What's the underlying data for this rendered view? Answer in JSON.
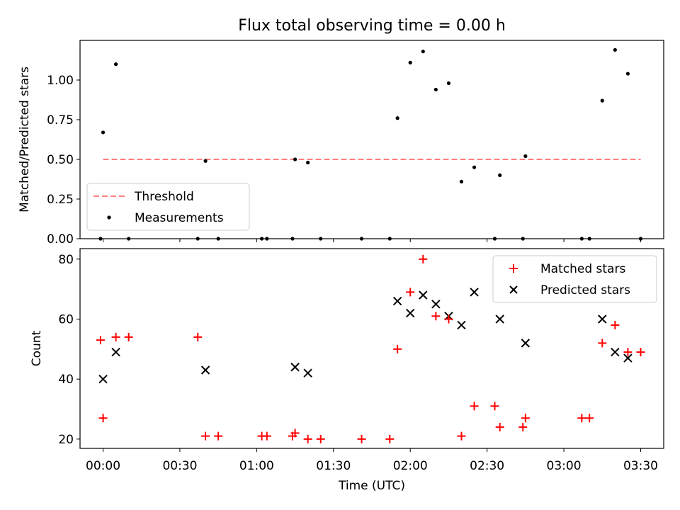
{
  "chart_data": [
    {
      "type": "scatter",
      "title": "Flux total observing time = 0.00 h",
      "xlabel": "",
      "ylabel": "Matched/Predicted stars",
      "xlim": [
        "23:51",
        "03:39"
      ],
      "ylim": [
        0,
        1.25
      ],
      "yticks": [
        "0.00",
        "0.25",
        "0.50",
        "0.75",
        "1.00"
      ],
      "yticks_values": [
        0,
        0.25,
        0.5,
        0.75,
        1.0
      ],
      "grid": false,
      "legend_position": "lower-left",
      "threshold": {
        "name": "Threshold",
        "value": 0.5,
        "color": "#ff7f7f",
        "style": "dashed",
        "x_range": [
          "00:00",
          "03:30"
        ]
      },
      "series": [
        {
          "name": "Measurements",
          "color": "#000000",
          "marker": "dot",
          "x": [
            "23:59",
            "00:00",
            "00:05",
            "00:10",
            "00:37",
            "00:40",
            "00:45",
            "01:02",
            "01:04",
            "01:14",
            "01:15",
            "01:20",
            "01:25",
            "01:41",
            "01:52",
            "01:55",
            "02:00",
            "02:05",
            "02:10",
            "02:15",
            "02:20",
            "02:25",
            "02:33",
            "02:35",
            "02:44",
            "02:45",
            "03:07",
            "03:10",
            "03:15",
            "03:20",
            "03:25",
            "03:30"
          ],
          "y": [
            0,
            0.67,
            1.1,
            0,
            0,
            0.49,
            0,
            0,
            0,
            0,
            0.5,
            0.48,
            0,
            0,
            0,
            0.76,
            1.11,
            1.18,
            0.94,
            0.98,
            0.36,
            0.45,
            0,
            0.4,
            0,
            0.52,
            0,
            0,
            0.87,
            1.19,
            1.04,
            0
          ]
        }
      ]
    },
    {
      "type": "scatter",
      "title": "",
      "xlabel": "Time (UTC)",
      "ylabel": "Count",
      "xlim": [
        "23:51",
        "03:39"
      ],
      "ylim": [
        16.9,
        83.5
      ],
      "xticks": [
        "00:00",
        "00:30",
        "01:00",
        "01:30",
        "02:00",
        "02:30",
        "03:00",
        "03:30"
      ],
      "yticks": [
        "20",
        "40",
        "60",
        "80"
      ],
      "yticks_values": [
        20,
        40,
        60,
        80
      ],
      "grid": false,
      "legend_position": "top-right",
      "series": [
        {
          "name": "Matched stars",
          "color": "#ff0000",
          "marker": "plus",
          "x": [
            "23:59",
            "00:00",
            "00:05",
            "00:10",
            "00:37",
            "00:40",
            "00:45",
            "01:02",
            "01:04",
            "01:14",
            "01:15",
            "01:20",
            "01:25",
            "01:41",
            "01:52",
            "01:55",
            "02:00",
            "02:05",
            "02:10",
            "02:15",
            "02:20",
            "02:25",
            "02:33",
            "02:35",
            "02:44",
            "02:45",
            "03:07",
            "03:10",
            "03:15",
            "03:20",
            "03:25",
            "03:30"
          ],
          "y": [
            53,
            27,
            54,
            54,
            54,
            21,
            21,
            21,
            21,
            21,
            22,
            20,
            20,
            20,
            20,
            50,
            69,
            80,
            61,
            60,
            21,
            31,
            31,
            24,
            24,
            27,
            27,
            27,
            52,
            58,
            49,
            49
          ]
        },
        {
          "name": "Predicted stars",
          "color": "#000000",
          "marker": "x",
          "x": [
            "00:00",
            "00:05",
            "00:40",
            "01:15",
            "01:20",
            "01:55",
            "02:00",
            "02:05",
            "02:10",
            "02:15",
            "02:20",
            "02:25",
            "02:35",
            "02:45",
            "03:15",
            "03:20",
            "03:25"
          ],
          "y": [
            40,
            49,
            43,
            44,
            42,
            66,
            62,
            68,
            65,
            61,
            58,
            69,
            60,
            52,
            60,
            49,
            47
          ]
        }
      ]
    }
  ]
}
